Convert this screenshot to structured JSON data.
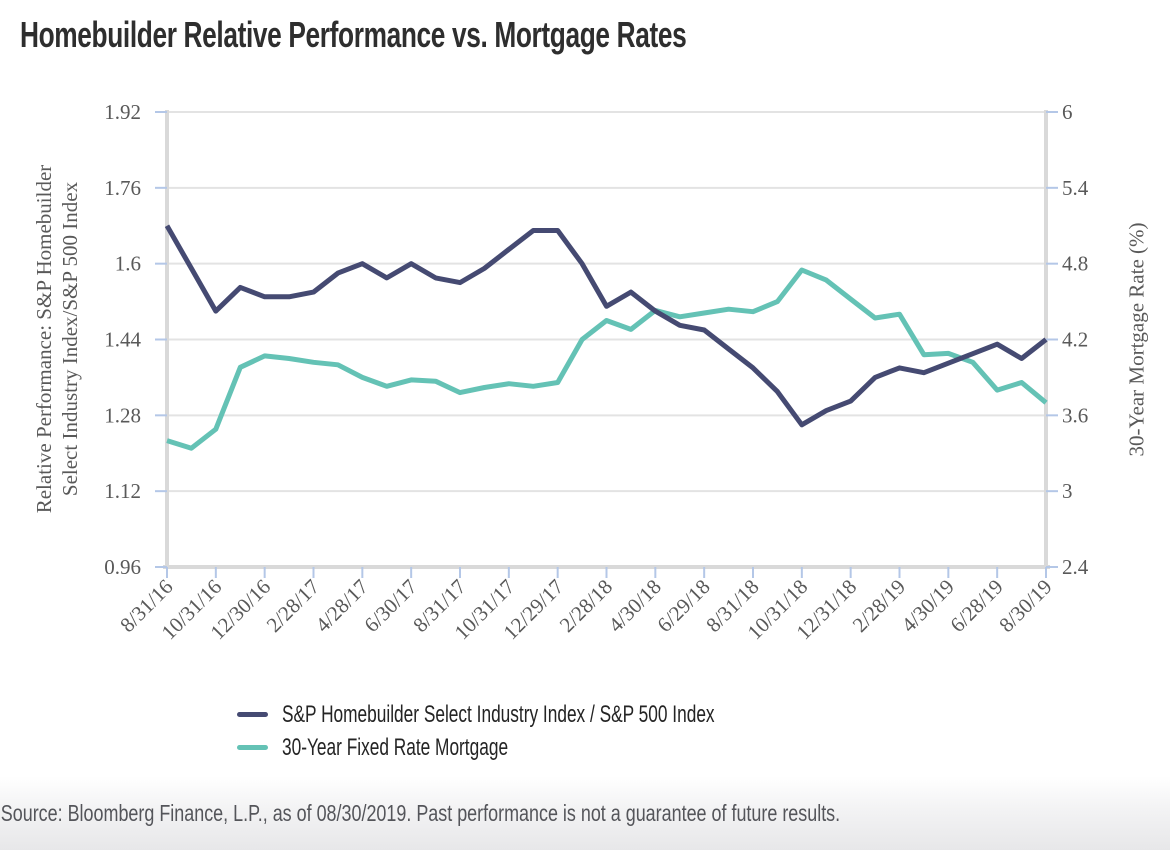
{
  "title": "Homebuilder Relative Performance vs. Mortgage Rates",
  "left_axis": {
    "title_line1": "Relative Performance: S&P Homebuilder",
    "title_line2": "Select Industry Index/S&P 500 Index"
  },
  "right_axis": {
    "title": "30-Year Mortgage Rate (%)"
  },
  "source": "Source: Bloomberg Finance, L.P., as of 08/30/2019. Past performance is not a guarantee of future results.",
  "colors": {
    "navy": "#454a72",
    "teal": "#64c2b5",
    "grid": "#e3e3e3",
    "axis_line": "#d9d9d9",
    "tick_mark": "#b4c7e7",
    "axis_text": "#595959",
    "title_text": "#2e2e2e",
    "legend_text": "#242424",
    "source_text": "#54555a"
  },
  "chart_data": {
    "type": "line",
    "title": "Homebuilder Relative Performance vs. Mortgage Rates",
    "x": [
      "8/31/16",
      "9/30/16",
      "10/31/16",
      "11/30/16",
      "12/30/16",
      "1/31/17",
      "2/28/17",
      "3/31/17",
      "4/28/17",
      "5/31/17",
      "6/30/17",
      "7/31/17",
      "8/31/17",
      "9/29/17",
      "10/31/17",
      "11/30/17",
      "12/29/17",
      "1/31/18",
      "2/28/18",
      "3/29/18",
      "4/30/18",
      "5/31/18",
      "6/29/18",
      "7/31/18",
      "8/31/18",
      "9/28/18",
      "10/31/18",
      "11/30/18",
      "12/31/18",
      "1/31/19",
      "2/28/19",
      "3/29/19",
      "4/30/19",
      "5/31/19",
      "6/28/19",
      "7/31/19",
      "8/30/19"
    ],
    "x_tick_labels": [
      "8/31/16",
      "10/31/16",
      "12/30/16",
      "2/28/17",
      "4/28/17",
      "6/30/17",
      "8/31/17",
      "10/31/17",
      "12/29/17",
      "2/28/18",
      "4/30/18",
      "6/29/18",
      "8/31/18",
      "10/31/18",
      "12/31/18",
      "2/28/19",
      "4/30/19",
      "6/28/19",
      "8/30/19"
    ],
    "x_label_every": 2,
    "series": [
      {
        "name": "S&P Homebuilder Select Industry Index / S&P 500 Index",
        "axis": "left",
        "color": "#454a72",
        "values": [
          1.68,
          1.59,
          1.5,
          1.55,
          1.53,
          1.53,
          1.54,
          1.58,
          1.6,
          1.57,
          1.6,
          1.57,
          1.56,
          1.59,
          1.63,
          1.67,
          1.67,
          1.6,
          1.51,
          1.54,
          1.5,
          1.47,
          1.46,
          1.42,
          1.38,
          1.33,
          1.26,
          1.29,
          1.31,
          1.36,
          1.38,
          1.37,
          1.39,
          1.41,
          1.43,
          1.4,
          1.44
        ]
      },
      {
        "name": "30-Year Fixed Rate Mortgage",
        "axis": "right",
        "color": "#64c2b5",
        "values": [
          3.4,
          3.34,
          3.49,
          3.98,
          4.07,
          4.05,
          4.02,
          4.0,
          3.9,
          3.83,
          3.88,
          3.87,
          3.78,
          3.82,
          3.85,
          3.83,
          3.86,
          4.2,
          4.35,
          4.28,
          4.43,
          4.38,
          4.41,
          4.44,
          4.42,
          4.5,
          4.75,
          4.67,
          4.52,
          4.37,
          4.4,
          4.08,
          4.09,
          4.02,
          3.8,
          3.86,
          3.7
        ]
      }
    ],
    "ylabel_left": "Relative Performance: S&P Homebuilder Select Industry Index/S&P 500 Index",
    "ylabel_right": "30-Year Mortgage Rate (%)",
    "left_ylim": [
      0.96,
      1.92
    ],
    "right_ylim": [
      2.4,
      6
    ],
    "left_ticks": [
      "1.92",
      "1.76",
      "1.6",
      "1.44",
      "1.28",
      "1.12",
      "0.96"
    ],
    "right_ticks": [
      "6",
      "5.4",
      "4.8",
      "4.2",
      "3.6",
      "3",
      "2.4"
    ],
    "grid": "horizontal",
    "legend_position": "bottom"
  }
}
